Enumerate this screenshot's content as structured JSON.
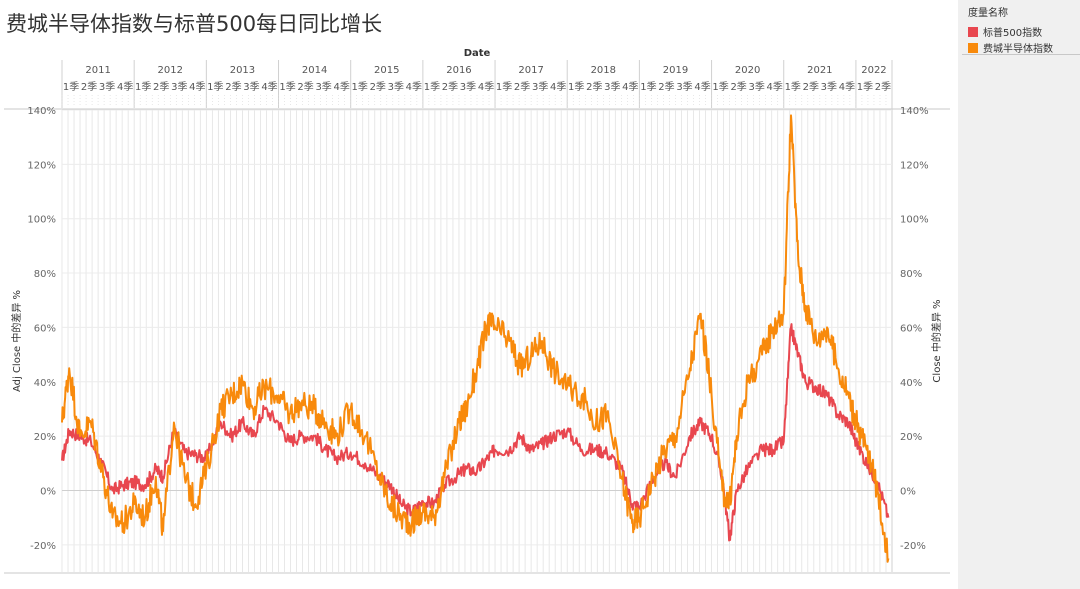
{
  "title": "费城半导体指数与标普500每日同比增长",
  "legend": {
    "title": "度量名称",
    "items": [
      {
        "label": "标普500指数",
        "color": "#e8474f"
      },
      {
        "label": "费城半导体指数",
        "color": "#f88a0c"
      }
    ]
  },
  "chart_data": {
    "type": "line",
    "title": "费城半导体指数与标普500每日同比增长",
    "xlabel": "Date",
    "ylabel_left": "Adj Close 中的差异 %",
    "ylabel_right": "Close 中的差异 %",
    "ylim": [
      -0.3,
      1.4
    ],
    "yticks": [
      "-20%",
      "0%",
      "20%",
      "40%",
      "60%",
      "80%",
      "100%",
      "120%",
      "140%"
    ],
    "ytick_values": [
      -0.2,
      0,
      0.2,
      0.4,
      0.6,
      0.8,
      1.0,
      1.2,
      1.4
    ],
    "years": [
      "2011",
      "2012",
      "2013",
      "2014",
      "2015",
      "2016",
      "2017",
      "2018",
      "2019",
      "2020",
      "2021",
      "2022"
    ],
    "quarter_labels": [
      "1季",
      "2季",
      "3季",
      "4季"
    ],
    "quarters_last_year": 2,
    "x": [
      2011.0,
      2011.1,
      2011.25,
      2011.4,
      2011.55,
      2011.7,
      2011.85,
      2012.0,
      2012.15,
      2012.3,
      2012.4,
      2012.55,
      2012.7,
      2012.85,
      2013.0,
      2013.2,
      2013.35,
      2013.5,
      2013.65,
      2013.8,
      2014.0,
      2014.15,
      2014.3,
      2014.5,
      2014.65,
      2014.8,
      2015.0,
      2015.2,
      2015.4,
      2015.55,
      2015.7,
      2015.85,
      2016.0,
      2016.15,
      2016.3,
      2016.5,
      2016.6,
      2016.75,
      2016.9,
      2017.0,
      2017.2,
      2017.35,
      2017.5,
      2017.65,
      2017.8,
      2018.0,
      2018.2,
      2018.4,
      2018.55,
      2018.75,
      2018.9,
      2019.0,
      2019.2,
      2019.35,
      2019.5,
      2019.7,
      2019.85,
      2020.0,
      2020.15,
      2020.25,
      2020.35,
      2020.5,
      2020.7,
      2020.85,
      2021.0,
      2021.1,
      2021.2,
      2021.3,
      2021.45,
      2021.6,
      2021.75,
      2021.9,
      2022.0,
      2022.15,
      2022.3,
      2022.45
    ],
    "series": [
      {
        "name": "标普500指数",
        "color": "#e8474f",
        "values": [
          0.11,
          0.22,
          0.2,
          0.18,
          0.1,
          0.0,
          0.02,
          0.03,
          0.02,
          0.08,
          0.05,
          0.22,
          0.14,
          0.13,
          0.12,
          0.25,
          0.2,
          0.25,
          0.2,
          0.3,
          0.25,
          0.18,
          0.2,
          0.2,
          0.15,
          0.12,
          0.14,
          0.1,
          0.05,
          0.02,
          -0.05,
          -0.08,
          -0.04,
          -0.05,
          0.02,
          0.06,
          0.08,
          0.07,
          0.12,
          0.15,
          0.15,
          0.2,
          0.15,
          0.17,
          0.2,
          0.22,
          0.15,
          0.15,
          0.14,
          0.08,
          -0.05,
          -0.06,
          0.05,
          0.1,
          0.05,
          0.2,
          0.25,
          0.2,
          0.05,
          -0.18,
          0.0,
          0.08,
          0.15,
          0.15,
          0.18,
          0.6,
          0.5,
          0.4,
          0.38,
          0.35,
          0.28,
          0.25,
          0.18,
          0.1,
          0.03,
          -0.1
        ]
      },
      {
        "name": "费城半导体指数",
        "color": "#f88a0c",
        "values": [
          0.25,
          0.45,
          0.2,
          0.25,
          0.08,
          -0.1,
          -0.12,
          -0.05,
          -0.1,
          0.05,
          -0.15,
          0.25,
          0.05,
          -0.05,
          0.08,
          0.3,
          0.35,
          0.4,
          0.3,
          0.38,
          0.35,
          0.28,
          0.32,
          0.3,
          0.25,
          0.2,
          0.3,
          0.2,
          0.05,
          -0.05,
          -0.1,
          -0.12,
          -0.08,
          -0.1,
          0.05,
          0.25,
          0.3,
          0.45,
          0.62,
          0.6,
          0.55,
          0.45,
          0.5,
          0.55,
          0.45,
          0.38,
          0.35,
          0.25,
          0.28,
          0.05,
          -0.12,
          -0.1,
          0.05,
          0.15,
          0.2,
          0.45,
          0.65,
          0.35,
          0.0,
          -0.05,
          0.2,
          0.4,
          0.5,
          0.6,
          0.65,
          1.38,
          0.85,
          0.68,
          0.55,
          0.6,
          0.45,
          0.35,
          0.25,
          0.15,
          0.0,
          -0.25
        ]
      }
    ]
  }
}
